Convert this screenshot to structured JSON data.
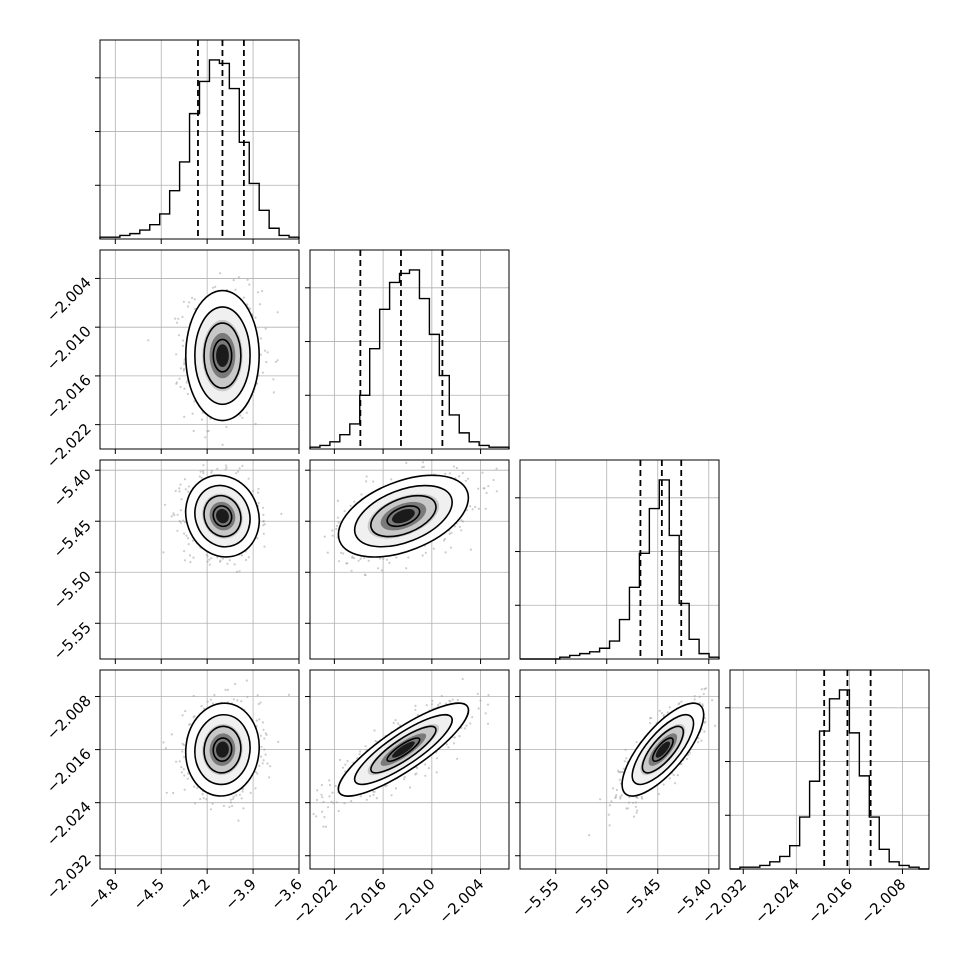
{
  "chart_data": {
    "type": "corner",
    "params": [
      {
        "ticks": [
          "−4.8",
          "−4.5",
          "−4.2",
          "−3.9",
          "−3.6"
        ],
        "range": [
          -4.9,
          -3.6
        ],
        "mean": -4.1,
        "sd": 0.12,
        "quantiles": [
          -4.26,
          -4.1,
          -3.96
        ]
      },
      {
        "ticks": [
          "−2.022",
          "−2.016",
          "−2.010",
          "−2.004"
        ],
        "range": [
          -2.025,
          -2.0005
        ],
        "mean": -2.0135,
        "sd": 0.004,
        "quantiles": [
          -2.0188,
          -2.0138,
          -2.0087
        ]
      },
      {
        "ticks": [
          "−5.55",
          "−5.50",
          "−5.45",
          "−5.40"
        ],
        "range": [
          -5.585,
          -5.39
        ],
        "mean": -5.445,
        "sd": 0.02,
        "quantiles": [
          -5.467,
          -5.446,
          -5.427
        ]
      },
      {
        "ticks": [
          "−2.032",
          "−2.024",
          "−2.016",
          "−2.008"
        ],
        "range": [
          -2.034,
          -2.004
        ],
        "mean": -2.016,
        "sd": 0.0035,
        "quantiles": [
          -2.0198,
          -2.0163,
          -2.0128
        ]
      }
    ],
    "hist_bins": {
      "0": [
        0.01,
        0.01,
        0.02,
        0.03,
        0.05,
        0.08,
        0.14,
        0.27,
        0.43,
        0.7,
        0.88,
        1.0,
        0.98,
        0.84,
        0.54,
        0.31,
        0.16,
        0.06,
        0.02,
        0.01
      ],
      "1": [
        0.01,
        0.02,
        0.04,
        0.08,
        0.14,
        0.3,
        0.56,
        0.78,
        0.93,
        0.98,
        1.0,
        0.84,
        0.64,
        0.41,
        0.19,
        0.09,
        0.04,
        0.02,
        0.01,
        0.01
      ],
      "2": [
        0.0,
        0.0,
        0.0,
        0.0,
        0.01,
        0.02,
        0.03,
        0.04,
        0.06,
        0.1,
        0.22,
        0.4,
        0.59,
        0.84,
        1.0,
        0.69,
        0.31,
        0.11,
        0.03,
        0.01
      ],
      "3": [
        0.0,
        0.01,
        0.01,
        0.02,
        0.04,
        0.07,
        0.13,
        0.29,
        0.49,
        0.77,
        0.95,
        1.0,
        0.76,
        0.52,
        0.29,
        0.11,
        0.04,
        0.02,
        0.01,
        0.0
      ]
    },
    "pairs": [
      {
        "row": 1,
        "col": 0,
        "rho": 0.0
      },
      {
        "row": 2,
        "col": 0,
        "rho": -0.1
      },
      {
        "row": 2,
        "col": 1,
        "rho": 0.45
      },
      {
        "row": 3,
        "col": 0,
        "rho": 0.05
      },
      {
        "row": 3,
        "col": 1,
        "rho": 0.85
      },
      {
        "row": 3,
        "col": 2,
        "rho": 0.75
      }
    ],
    "grid": true
  }
}
